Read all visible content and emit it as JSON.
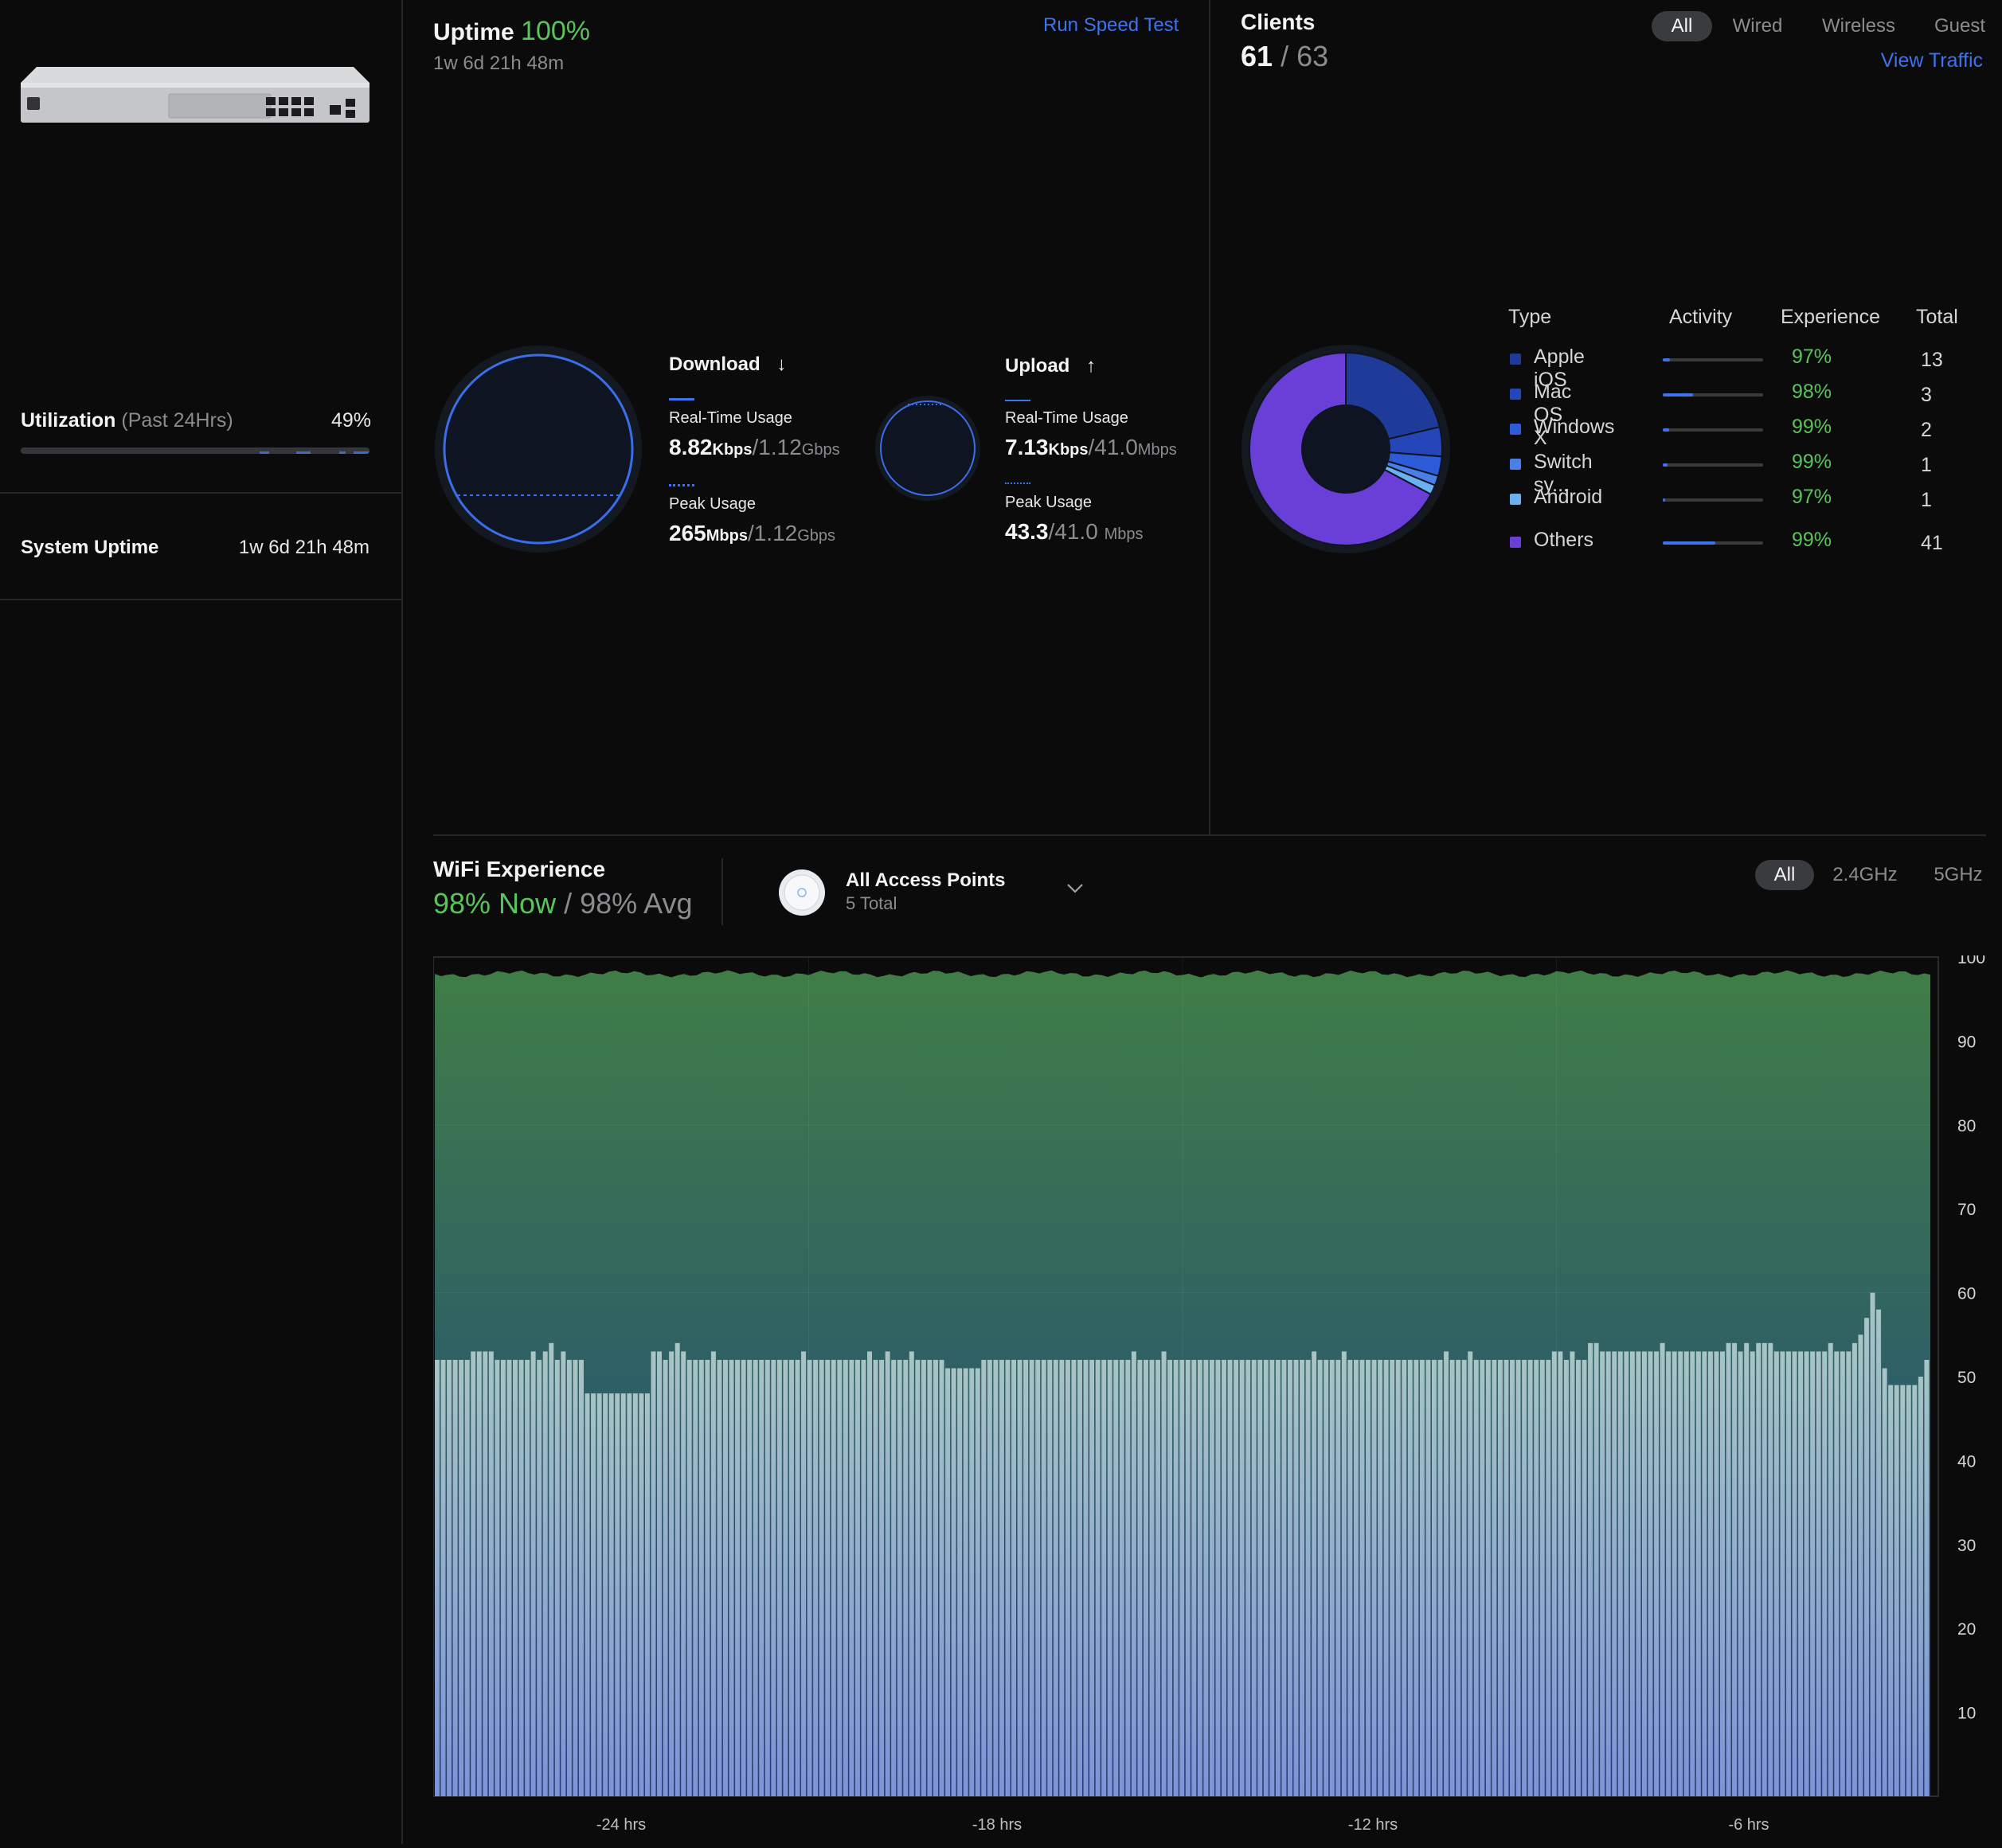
{
  "left_panel": {
    "utilization_label": "Utilization",
    "utilization_period": "(Past 24Hrs)",
    "utilization_value": "49%",
    "utilization_fraction": 0.49,
    "system_uptime_label": "System Uptime",
    "system_uptime_value": "1w 6d 21h 48m"
  },
  "internet": {
    "uptime_label": "Uptime",
    "uptime_pct": "100%",
    "uptime_duration": "1w 6d 21h 48m",
    "speed_test_label": "Run Speed Test",
    "download": {
      "title": "Download",
      "arrow": "↓",
      "realtime_label": "Real-Time Usage",
      "realtime_value": "8.82",
      "realtime_unit": "Kbps",
      "realtime_cap": "/1.12",
      "realtime_cap_unit": "Gbps",
      "peak_label": "Peak Usage",
      "peak_value": "265",
      "peak_unit": "Mbps",
      "peak_cap": "/1.12",
      "peak_cap_unit": "Gbps"
    },
    "upload": {
      "title": "Upload",
      "arrow": "↑",
      "realtime_label": "Real-Time Usage",
      "realtime_value": "7.13",
      "realtime_unit": "Kbps",
      "realtime_cap": "/41.0",
      "realtime_cap_unit": "Mbps",
      "peak_label": "Peak Usage",
      "peak_value": "43.3",
      "peak_cap": "/41.0",
      "peak_cap_unit": "Mbps"
    }
  },
  "clients": {
    "title": "Clients",
    "active": "61",
    "total": "/ 63",
    "filters": [
      "All",
      "Wired",
      "Wireless",
      "Guest"
    ],
    "view_traffic_label": "View Traffic",
    "columns": [
      "Type",
      "Activity",
      "Experience",
      "Total"
    ],
    "rows": [
      {
        "type": "Apple iOS",
        "color": "#1f3b9a",
        "activity": 0.07,
        "experience": "97%",
        "total": "13"
      },
      {
        "type": "Mac OS X",
        "color": "#2446b8",
        "activity": 0.3,
        "experience": "98%",
        "total": "3"
      },
      {
        "type": "Windows",
        "color": "#2e5bd8",
        "activity": 0.06,
        "experience": "99%",
        "total": "2"
      },
      {
        "type": "Switch sy...",
        "color": "#4a7fe8",
        "activity": 0.05,
        "experience": "99%",
        "total": "1"
      },
      {
        "type": "Android",
        "color": "#6bb0f0",
        "activity": 0.02,
        "experience": "97%",
        "total": "1"
      },
      {
        "type": "Others",
        "color": "#6a3fd8",
        "activity": 0.52,
        "experience": "99%",
        "total": "41"
      }
    ]
  },
  "wifi": {
    "title": "WiFi Experience",
    "now_value": "98% Now",
    "avg_value": "/ 98% Avg",
    "ap_title": "All Access Points",
    "ap_count": "5 Total",
    "bands": [
      "All",
      "2.4GHz",
      "5GHz"
    ]
  },
  "chart_data": {
    "type": "bar",
    "y_ticks": [
      "100",
      "90",
      "80",
      "70",
      "60",
      "50",
      "40",
      "30",
      "20",
      "10"
    ],
    "x_ticks": [
      "-24 hrs",
      "-18 hrs",
      "-12 hrs",
      "-6 hrs"
    ],
    "ylim": [
      0,
      100
    ],
    "experience_area_approx": 98,
    "series": [
      {
        "values": [
          52,
          52,
          52,
          52,
          52,
          52,
          53,
          53,
          53,
          53,
          52,
          52,
          52,
          52,
          52,
          52,
          53,
          52,
          53,
          54,
          52,
          53,
          52,
          52,
          52,
          48,
          48,
          48,
          48,
          48,
          48,
          48,
          48,
          48,
          48,
          48,
          53,
          53,
          52,
          53,
          54,
          53,
          52,
          52,
          52,
          52,
          53,
          52,
          52,
          52,
          52,
          52,
          52,
          52,
          52,
          52,
          52,
          52,
          52,
          52,
          52,
          53,
          52,
          52,
          52,
          52,
          52,
          52,
          52,
          52,
          52,
          52,
          53,
          52,
          52,
          53,
          52,
          52,
          52,
          53,
          52,
          52,
          52,
          52,
          52,
          51,
          51,
          51,
          51,
          51,
          51,
          52,
          52,
          52,
          52,
          52,
          52,
          52,
          52,
          52,
          52,
          52,
          52,
          52,
          52,
          52,
          52,
          52,
          52,
          52,
          52,
          52,
          52,
          52,
          52,
          52,
          53,
          52,
          52,
          52,
          52,
          53,
          52,
          52,
          52,
          52,
          52,
          52,
          52,
          52,
          52,
          52,
          52,
          52,
          52,
          52,
          52,
          52,
          52,
          52,
          52,
          52,
          52,
          52,
          52,
          52,
          53,
          52,
          52,
          52,
          52,
          53,
          52,
          52,
          52,
          52,
          52,
          52,
          52,
          52,
          52,
          52,
          52,
          52,
          52,
          52,
          52,
          52,
          53,
          52,
          52,
          52,
          53,
          52,
          52,
          52,
          52,
          52,
          52,
          52,
          52,
          52,
          52,
          52,
          52,
          52,
          53,
          53,
          52,
          53,
          52,
          52,
          54,
          54,
          53,
          53,
          53,
          53,
          53,
          53,
          53,
          53,
          53,
          53,
          54,
          53,
          53,
          53,
          53,
          53,
          53,
          53,
          53,
          53,
          53,
          54,
          54,
          53,
          54,
          53,
          54,
          54,
          54,
          53,
          53,
          53,
          53,
          53,
          53,
          53,
          53,
          53,
          54,
          53,
          53,
          53,
          54,
          55,
          57,
          60,
          58,
          51,
          49,
          49,
          49,
          49,
          49,
          50,
          52
        ]
      }
    ]
  }
}
